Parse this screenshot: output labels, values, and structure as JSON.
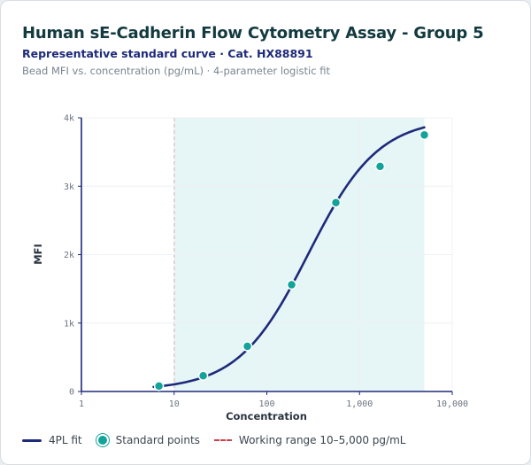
{
  "header": {
    "title": "Human sE-Cadherin Flow Cytometry Assay - Group 5",
    "subtitle": "Representative standard curve · Cat. HX88891",
    "caption": "Bead MFI vs. concentration (pg/mL) · 4-parameter logistic fit"
  },
  "colors": {
    "fit": "#1e2a7a",
    "points": "#13a39a",
    "range_line": "#cf3f4b",
    "range_fill": "#e6f5f5",
    "axis": "#1e2a7a",
    "grid": "#edf0f3"
  },
  "chart_data": {
    "type": "scatter",
    "title": "Human sE-Cadherin Flow Cytometry Assay - Group 5",
    "xlabel": "Concentration",
    "ylabel": "MFI",
    "x_scale": "log",
    "xlim": [
      1,
      10000
    ],
    "ylim": [
      0,
      4000
    ],
    "x_ticks": [
      1,
      10,
      100,
      1000,
      10000
    ],
    "x_tick_labels": [
      "1",
      "10",
      "100",
      "1,000",
      "10,000"
    ],
    "y_ticks": [
      0,
      1000,
      2000,
      3000,
      4000
    ],
    "y_tick_labels": [
      "0",
      "1k",
      "2k",
      "3k",
      "4k"
    ],
    "grid": true,
    "legend_position": "bottom",
    "series": [
      {
        "name": "Standard points",
        "kind": "scatter",
        "x": [
          6.86,
          20.6,
          61.7,
          185.2,
          555.6,
          1666.7,
          5000
        ],
        "y": [
          80,
          230,
          660,
          1560,
          2760,
          3290,
          3750
        ]
      },
      {
        "name": "4PL fit",
        "kind": "line",
        "x_range": [
          6.0,
          5000
        ],
        "params": {
          "bottom": 20,
          "top": 4000,
          "ec50": 280,
          "hill": 1.15
        }
      }
    ],
    "working_range": {
      "label": "Working range 10–5,000 pg/mL",
      "from": 10,
      "to": 5000
    }
  },
  "legend": {
    "fit_label": "4PL fit",
    "points_label": "Standard points",
    "range_label": "Working range 10–5,000 pg/mL"
  }
}
